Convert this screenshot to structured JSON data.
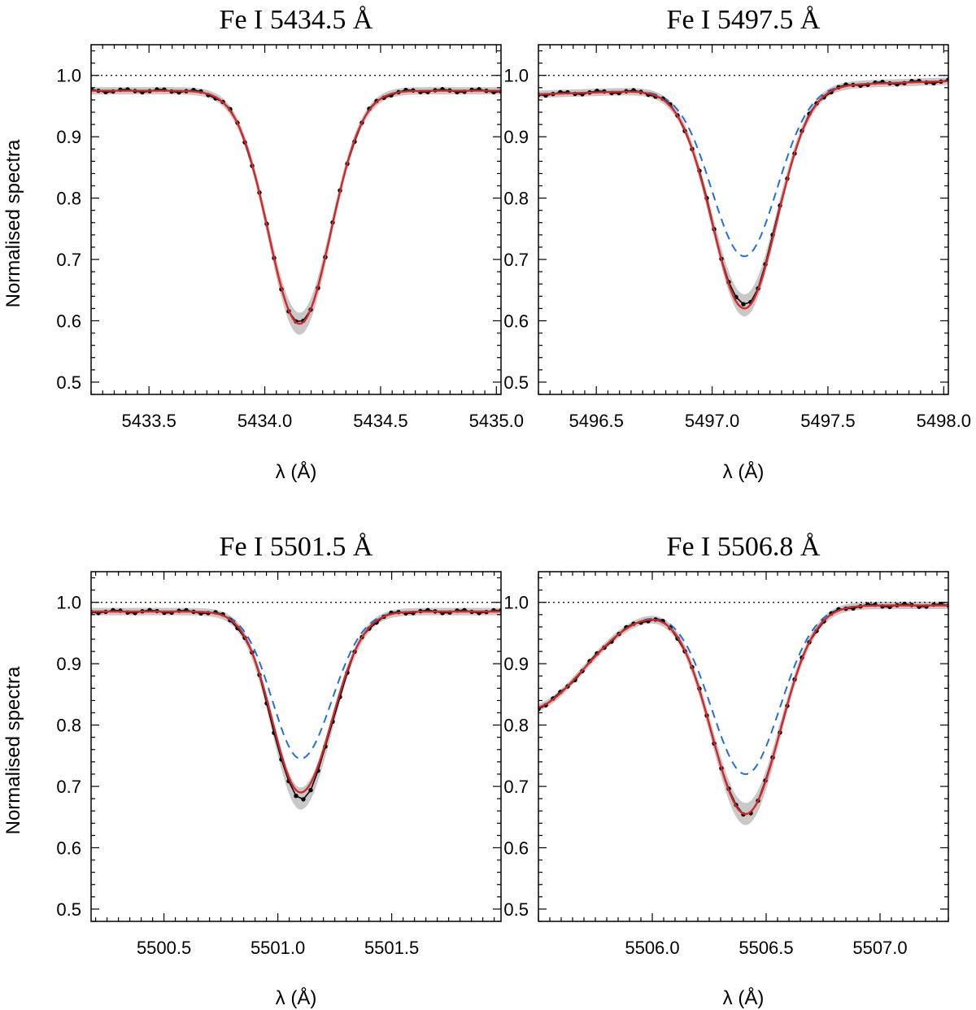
{
  "colors": {
    "observed": "#000000",
    "band": "#c8c8c8",
    "model_red": "#d62728",
    "model_blue": "#1f6fe0",
    "reference": "#000000"
  },
  "chart_data": [
    {
      "type": "line",
      "title": "Fe I  5434.5 Å",
      "xlabel": "λ (Å)",
      "ylabel": "Normalised spectra",
      "xlim": [
        5433.25,
        5435.02
      ],
      "ylim": [
        0.48,
        1.05
      ],
      "xticks": [
        5433.5,
        5434.0,
        5434.5,
        5435.0
      ],
      "xtick_labels": [
        "5433.5",
        "5434.0",
        "5434.5",
        "5435.0"
      ],
      "yticks": [
        0.5,
        0.6,
        0.7,
        0.8,
        0.9,
        1.0
      ],
      "ytick_labels": [
        "0.5",
        "0.6",
        "0.7",
        "0.8",
        "0.9",
        "1.0"
      ],
      "reference_line": 1.0,
      "line_profile": {
        "continuum": 0.975,
        "center": 5434.15,
        "depth_obs": 0.38,
        "depth_red": 0.38,
        "depth_blue": null,
        "sigma": 0.135,
        "slope": 0.0,
        "slope_center": 5434.15,
        "asym": 0.0
      },
      "series_names": [
        "observed",
        "uncertainty band",
        "best-fit model (red)"
      ]
    },
    {
      "type": "line",
      "title": "Fe I  5497.5 Å",
      "xlabel": "λ (Å)",
      "ylabel": "",
      "xlim": [
        5496.25,
        5498.02
      ],
      "ylim": [
        0.48,
        1.05
      ],
      "xticks": [
        5496.5,
        5497.0,
        5497.5,
        5498.0
      ],
      "xtick_labels": [
        "5496.5",
        "5497.0",
        "5497.5",
        "5498.0"
      ],
      "yticks": [
        0.5,
        0.6,
        0.7,
        0.8,
        0.9,
        1.0
      ],
      "ytick_labels": [
        "0.5",
        "0.6",
        "0.7",
        "0.8",
        "0.9",
        "1.0"
      ],
      "reference_line": 1.0,
      "line_profile": {
        "continuum": 0.98,
        "center": 5497.14,
        "depth_obs": 0.355,
        "depth_red": 0.36,
        "depth_blue": 0.275,
        "sigma": 0.14,
        "slope": 0.012,
        "slope_center": 5497.14,
        "asym": 0.0
      },
      "series_names": [
        "observed",
        "uncertainty band",
        "best-fit model (red)",
        "alternative model (blue dashed)"
      ]
    },
    {
      "type": "line",
      "title": "Fe I  5501.5 Å",
      "xlabel": "λ (Å)",
      "ylabel": "Normalised spectra",
      "xlim": [
        5500.18,
        5501.98
      ],
      "ylim": [
        0.48,
        1.05
      ],
      "xticks": [
        5500.5,
        5501.0,
        5501.5
      ],
      "xtick_labels": [
        "5500.5",
        "5501.0",
        "5501.5"
      ],
      "yticks": [
        0.5,
        0.6,
        0.7,
        0.8,
        0.9,
        1.0
      ],
      "ytick_labels": [
        "0.5",
        "0.6",
        "0.7",
        "0.8",
        "0.9",
        "1.0"
      ],
      "reference_line": 1.0,
      "line_profile": {
        "continuum": 0.985,
        "center": 5501.1,
        "depth_obs": 0.305,
        "depth_red": 0.295,
        "depth_blue": 0.24,
        "sigma": 0.13,
        "slope": 0.0,
        "slope_center": 5501.1,
        "asym": 0.05
      },
      "series_names": [
        "observed",
        "uncertainty band",
        "best-fit model (red)",
        "alternative model (blue dashed)"
      ]
    },
    {
      "type": "line",
      "title": "Fe I  5506.8 Å",
      "xlabel": "λ (Å)",
      "ylabel": "",
      "xlim": [
        5505.5,
        5507.3
      ],
      "ylim": [
        0.48,
        1.05
      ],
      "xticks": [
        5506.0,
        5506.5,
        5507.0
      ],
      "xtick_labels": [
        "5506.0",
        "5506.5",
        "5507.0"
      ],
      "yticks": [
        0.5,
        0.6,
        0.7,
        0.8,
        0.9,
        1.0
      ],
      "ytick_labels": [
        "0.5",
        "0.6",
        "0.7",
        "0.8",
        "0.9",
        "1.0"
      ],
      "reference_line": 1.0,
      "line_profile": {
        "continuum": 0.995,
        "center": 5506.41,
        "depth_obs": 0.34,
        "depth_red": 0.34,
        "depth_blue": 0.275,
        "sigma": 0.15,
        "slope": 0.0,
        "slope_center": 5506.41,
        "asym": 0.0,
        "blend": {
          "center": 5505.45,
          "depth": 0.17,
          "sigma": 0.25
        }
      },
      "series_names": [
        "observed",
        "uncertainty band",
        "best-fit model (red)",
        "alternative model (blue dashed)"
      ]
    }
  ]
}
